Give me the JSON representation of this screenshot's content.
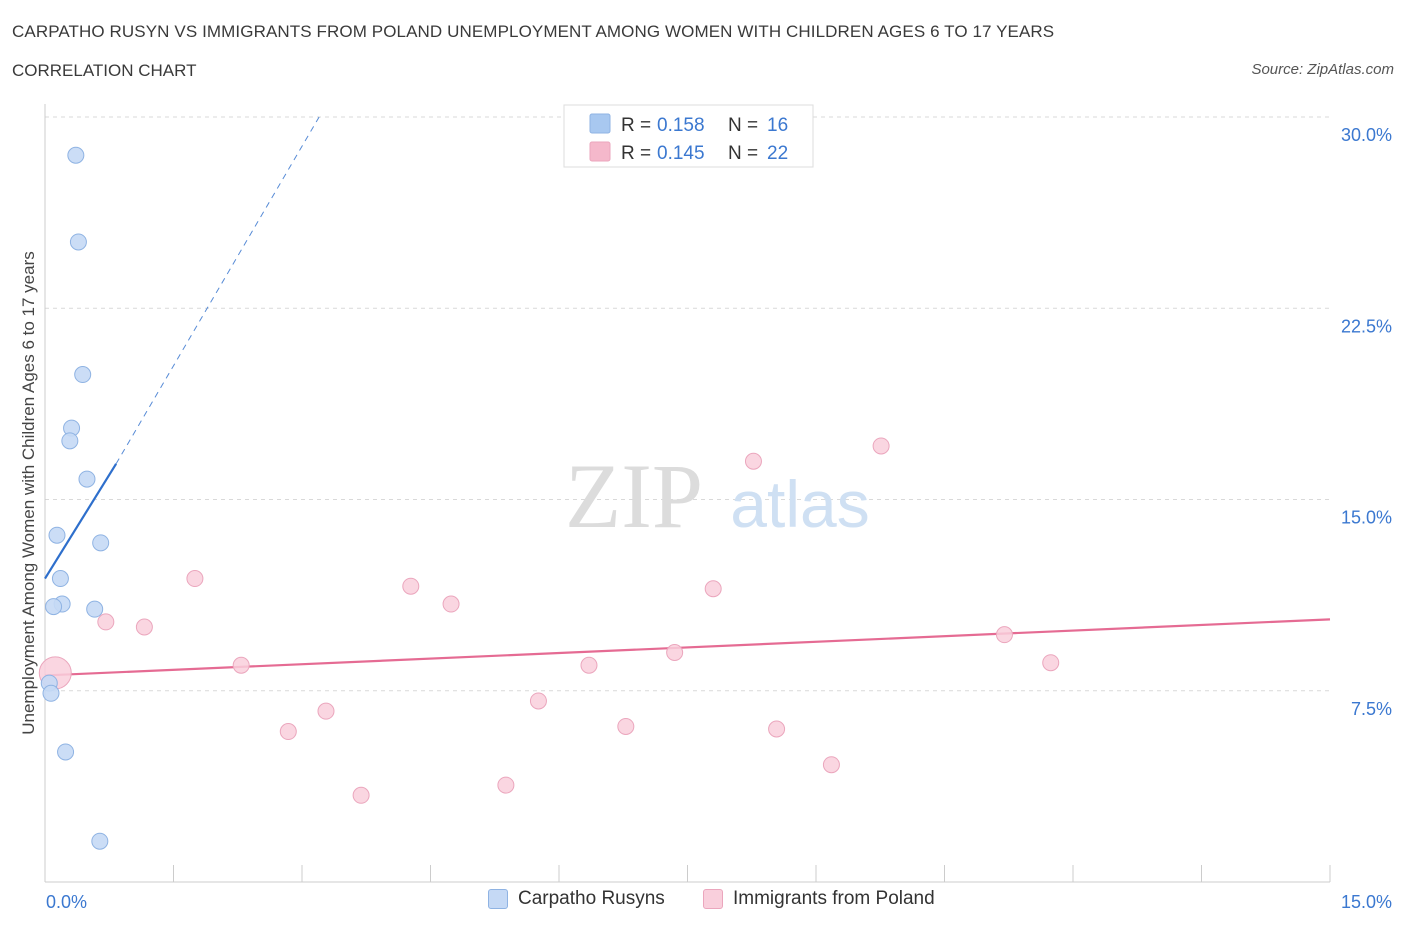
{
  "header": {
    "title": "CARPATHO RUSYN VS IMMIGRANTS FROM POLAND UNEMPLOYMENT AMONG WOMEN WITH CHILDREN AGES 6 TO 17 YEARS",
    "subtitle": "CORRELATION CHART",
    "source": "Source: ZipAtlas.com"
  },
  "watermark": {
    "zip": "ZIP",
    "atlas": "atlas"
  },
  "stats_legend": [
    {
      "r_label": "R =",
      "r_value": "0.158",
      "n_label": "N =",
      "n_value": "16",
      "color": "#a8c8f0"
    },
    {
      "r_label": "R =",
      "r_value": "0.145",
      "n_label": "N =",
      "n_value": "22",
      "color": "#f5b8cb"
    }
  ],
  "colors": {
    "blue_fill": "#c5d9f5",
    "blue_stroke": "#8fb3e3",
    "blue_line": "#2e6fcc",
    "pink_fill": "#f9cfdc",
    "pink_stroke": "#eba6bd",
    "pink_line": "#e56b93",
    "tick_label": "#3b78d0",
    "grid": "#d9d9d9"
  },
  "chart_data": {
    "type": "scatter",
    "title": "CARPATHO RUSYN VS IMMIGRANTS FROM POLAND UNEMPLOYMENT AMONG WOMEN WITH CHILDREN AGES 6 TO 17 YEARS",
    "xlabel": "",
    "ylabel": "Unemployment Among Women with Children Ages 6 to 17 years",
    "xlim": [
      0,
      15
    ],
    "ylim": [
      0,
      30
    ],
    "x_tick_labels": [
      "0.0%",
      "15.0%"
    ],
    "y_tick_labels": [
      "7.5%",
      "15.0%",
      "22.5%",
      "30.0%"
    ],
    "y_ticks": [
      7.5,
      15.0,
      22.5,
      30.0
    ],
    "grid": true,
    "legend_position": "bottom",
    "series": [
      {
        "name": "Carpatho Rusyns",
        "color": "#c5d9f5",
        "points": [
          {
            "x": 0.36,
            "y": 28.5
          },
          {
            "x": 0.39,
            "y": 25.1
          },
          {
            "x": 0.44,
            "y": 19.9
          },
          {
            "x": 0.31,
            "y": 17.8
          },
          {
            "x": 0.29,
            "y": 17.3
          },
          {
            "x": 0.49,
            "y": 15.8
          },
          {
            "x": 0.14,
            "y": 13.6
          },
          {
            "x": 0.65,
            "y": 13.3
          },
          {
            "x": 0.18,
            "y": 11.9
          },
          {
            "x": 0.2,
            "y": 10.9
          },
          {
            "x": 0.1,
            "y": 10.8
          },
          {
            "x": 0.58,
            "y": 10.7
          },
          {
            "x": 0.05,
            "y": 7.8
          },
          {
            "x": 0.07,
            "y": 7.4
          },
          {
            "x": 0.24,
            "y": 5.1
          },
          {
            "x": 0.64,
            "y": 1.6
          }
        ],
        "trend": {
          "x0": 0.0,
          "y0": 11.9,
          "x1": 0.83,
          "y1": 16.4,
          "dash_to_x": 3.2,
          "dash_to_y": 30.0
        }
      },
      {
        "name": "Immigrants from Poland",
        "color": "#f9cfdc",
        "points": [
          {
            "x": 0.12,
            "y": 8.2
          },
          {
            "x": 1.75,
            "y": 11.9
          },
          {
            "x": 0.71,
            "y": 10.2
          },
          {
            "x": 1.16,
            "y": 10.0
          },
          {
            "x": 2.29,
            "y": 8.5
          },
          {
            "x": 2.84,
            "y": 5.9
          },
          {
            "x": 3.28,
            "y": 6.7
          },
          {
            "x": 3.69,
            "y": 3.4
          },
          {
            "x": 4.27,
            "y": 11.6
          },
          {
            "x": 4.74,
            "y": 10.9
          },
          {
            "x": 5.38,
            "y": 3.8
          },
          {
            "x": 5.76,
            "y": 7.1
          },
          {
            "x": 6.35,
            "y": 8.5
          },
          {
            "x": 6.78,
            "y": 6.1
          },
          {
            "x": 7.35,
            "y": 9.0
          },
          {
            "x": 7.8,
            "y": 11.5
          },
          {
            "x": 8.27,
            "y": 16.5
          },
          {
            "x": 8.54,
            "y": 6.0
          },
          {
            "x": 9.18,
            "y": 4.6
          },
          {
            "x": 9.76,
            "y": 17.1
          },
          {
            "x": 11.2,
            "y": 9.7
          },
          {
            "x": 11.74,
            "y": 8.6
          }
        ],
        "trend": {
          "x0": 0.0,
          "y0": 8.1,
          "x1": 15.0,
          "y1": 10.3
        }
      }
    ]
  }
}
